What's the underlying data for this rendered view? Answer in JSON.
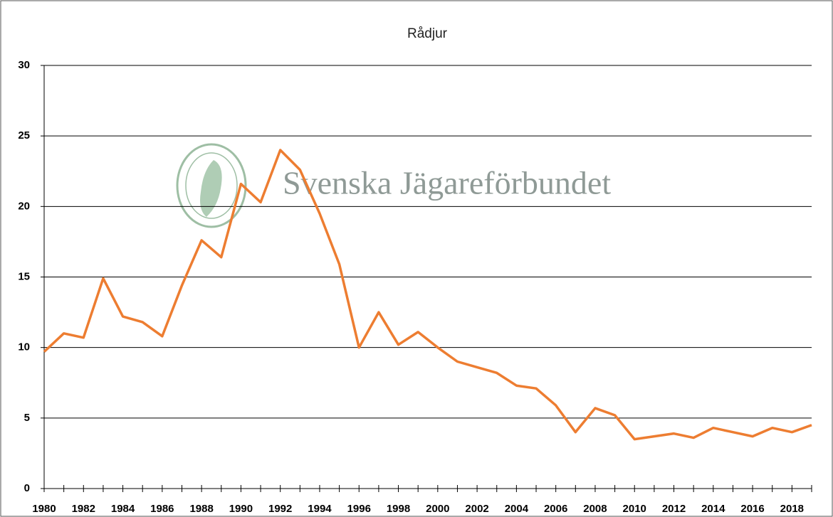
{
  "chart_data": {
    "type": "line",
    "title": "Rådjur",
    "watermark": "Svenska Jägareförbundet",
    "categories": [
      "1980",
      null,
      "1982",
      null,
      "1984",
      null,
      "1986",
      null,
      "1988",
      null,
      "1990",
      null,
      "1992",
      null,
      "1994",
      null,
      "1996",
      null,
      "1998",
      null,
      "2000",
      null,
      "2002",
      null,
      "2004",
      null,
      "2006",
      null,
      "2008",
      null,
      "2010",
      null,
      "2012",
      null,
      "2014",
      null,
      "2016",
      null,
      "2018",
      null
    ],
    "values": [
      9.7,
      11.0,
      10.7,
      14.9,
      12.2,
      11.8,
      10.8,
      14.4,
      17.6,
      16.4,
      21.6,
      20.3,
      24.0,
      22.6,
      19.5,
      15.9,
      10.0,
      12.5,
      10.2,
      11.1,
      10.0,
      9.0,
      8.6,
      8.2,
      7.3,
      7.1,
      5.9,
      4.0,
      5.7,
      5.2,
      3.5,
      3.7,
      3.9,
      3.6,
      4.3,
      4.0,
      3.7,
      4.3,
      4.0,
      4.5
    ],
    "color": "#ed7d31",
    "ylim": [
      0,
      30
    ],
    "yticks": [
      0,
      5,
      10,
      15,
      20,
      25,
      30
    ],
    "grid": true
  }
}
